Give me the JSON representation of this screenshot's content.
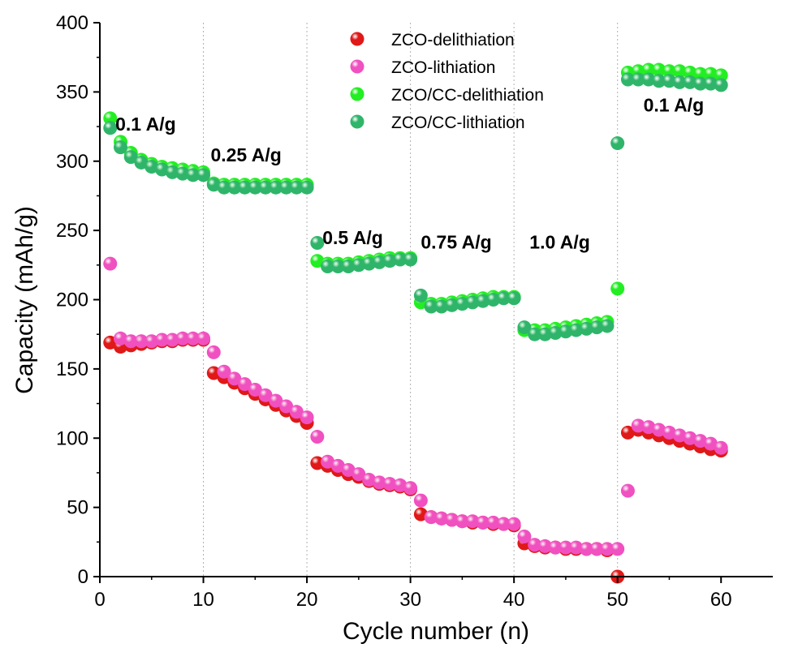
{
  "chart_data": {
    "type": "scatter",
    "title": "",
    "xlabel": "Cycle number (n)",
    "ylabel": "Capacity (mAh/g)",
    "xlim": [
      0,
      65
    ],
    "ylim": [
      0,
      400
    ],
    "xticks": [
      0,
      10,
      20,
      30,
      40,
      50,
      60
    ],
    "yticks": [
      0,
      50,
      100,
      150,
      200,
      250,
      300,
      350,
      400
    ],
    "grid": "vertical dotted lines at x = 10, 20, 30, 40, 50",
    "legend_position": "top-center",
    "annotations": [
      {
        "text": "0.1 A/g",
        "x": 1.5,
        "y": 322
      },
      {
        "text": "0.25 A/g",
        "x": 10.7,
        "y": 300
      },
      {
        "text": "0.5 A/g",
        "x": 21.5,
        "y": 240
      },
      {
        "text": "0.75 A/g",
        "x": 31.0,
        "y": 237
      },
      {
        "text": "1.0 A/g",
        "x": 41.5,
        "y": 237
      },
      {
        "text": "0.1 A/g",
        "x": 52.5,
        "y": 336
      }
    ],
    "series": [
      {
        "name": "ZCO-delithiation",
        "color": "#e01818",
        "x": [
          1,
          2,
          3,
          4,
          5,
          6,
          7,
          8,
          9,
          10,
          11,
          12,
          13,
          14,
          15,
          16,
          17,
          18,
          19,
          20,
          21,
          22,
          23,
          24,
          25,
          26,
          27,
          28,
          29,
          30,
          31,
          32,
          33,
          34,
          35,
          36,
          37,
          38,
          39,
          40,
          41,
          42,
          43,
          44,
          45,
          46,
          47,
          48,
          49,
          50,
          51,
          52,
          53,
          54,
          55,
          56,
          57,
          58,
          59,
          60
        ],
        "y": [
          169,
          166,
          167,
          168,
          169,
          170,
          170,
          171,
          171,
          171,
          147,
          144,
          140,
          136,
          132,
          128,
          124,
          120,
          116,
          111,
          82,
          80,
          77,
          74,
          72,
          69,
          67,
          66,
          65,
          63,
          45,
          43,
          42,
          41,
          40,
          39,
          39,
          38,
          38,
          37,
          24,
          22,
          21,
          21,
          20,
          20,
          20,
          20,
          19,
          0,
          104,
          106,
          104,
          102,
          100,
          98,
          96,
          94,
          92,
          91
        ]
      },
      {
        "name": "ZCO-lithiation",
        "color": "#f050c0",
        "x": [
          1,
          2,
          3,
          4,
          5,
          6,
          7,
          8,
          9,
          10,
          11,
          12,
          13,
          14,
          15,
          16,
          17,
          18,
          19,
          20,
          21,
          22,
          23,
          24,
          25,
          26,
          27,
          28,
          29,
          30,
          31,
          32,
          33,
          34,
          35,
          36,
          37,
          38,
          39,
          40,
          41,
          42,
          43,
          44,
          45,
          46,
          47,
          48,
          49,
          50,
          51,
          52,
          53,
          54,
          55,
          56,
          57,
          58,
          59,
          60
        ],
        "y": [
          226,
          172,
          170,
          170,
          170,
          171,
          171,
          172,
          172,
          172,
          162,
          148,
          143,
          139,
          135,
          131,
          127,
          123,
          119,
          115,
          101,
          83,
          80,
          77,
          74,
          70,
          68,
          67,
          66,
          64,
          55,
          43,
          42,
          41,
          40,
          40,
          39,
          39,
          38,
          38,
          29,
          23,
          22,
          21,
          21,
          21,
          20,
          20,
          20,
          20,
          62,
          109,
          108,
          106,
          104,
          102,
          100,
          98,
          96,
          93
        ]
      },
      {
        "name": "ZCO/CC-delithiation",
        "color": "#22ee22",
        "x": [
          1,
          2,
          3,
          4,
          5,
          6,
          7,
          8,
          9,
          10,
          11,
          12,
          13,
          14,
          15,
          16,
          17,
          18,
          19,
          20,
          21,
          22,
          23,
          24,
          25,
          26,
          27,
          28,
          29,
          30,
          31,
          32,
          33,
          34,
          35,
          36,
          37,
          38,
          39,
          40,
          41,
          42,
          43,
          44,
          45,
          46,
          47,
          48,
          49,
          50,
          51,
          52,
          53,
          54,
          55,
          56,
          57,
          58,
          59,
          60
        ],
        "y": [
          331,
          314,
          306,
          301,
          298,
          296,
          295,
          294,
          293,
          292,
          284,
          283,
          283,
          283,
          283,
          283,
          283,
          283,
          283,
          283,
          228,
          226,
          226,
          226,
          227,
          228,
          229,
          230,
          230,
          230,
          198,
          197,
          197,
          198,
          199,
          200,
          201,
          202,
          202,
          202,
          178,
          178,
          178,
          179,
          180,
          181,
          182,
          183,
          184,
          208,
          364,
          365,
          366,
          366,
          365,
          365,
          364,
          363,
          363,
          362
        ]
      },
      {
        "name": "ZCO/CC-lithiation",
        "color": "#2fb56a",
        "x": [
          1,
          2,
          3,
          4,
          5,
          6,
          7,
          8,
          9,
          10,
          11,
          12,
          13,
          14,
          15,
          16,
          17,
          18,
          19,
          20,
          21,
          22,
          23,
          24,
          25,
          26,
          27,
          28,
          29,
          30,
          31,
          32,
          33,
          34,
          35,
          36,
          37,
          38,
          39,
          40,
          41,
          42,
          43,
          44,
          45,
          46,
          47,
          48,
          49,
          50,
          51,
          52,
          53,
          54,
          55,
          56,
          57,
          58,
          59,
          60
        ],
        "y": [
          324,
          310,
          303,
          299,
          296,
          294,
          292,
          291,
          290,
          290,
          283,
          281,
          281,
          281,
          281,
          281,
          281,
          281,
          281,
          281,
          241,
          224,
          224,
          224,
          225,
          226,
          227,
          228,
          229,
          229,
          203,
          195,
          195,
          196,
          197,
          198,
          199,
          200,
          201,
          201,
          180,
          175,
          175,
          176,
          177,
          178,
          179,
          180,
          181,
          313,
          359,
          359,
          359,
          358,
          358,
          357,
          357,
          356,
          356,
          355
        ]
      }
    ]
  }
}
